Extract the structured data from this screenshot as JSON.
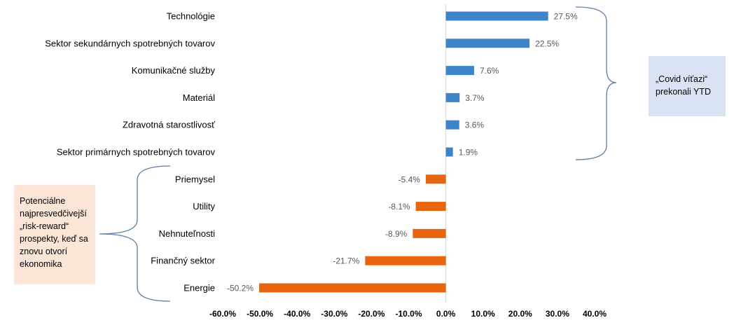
{
  "chart_data": {
    "type": "bar",
    "orientation": "horizontal",
    "categories": [
      "Technológie",
      "Sektor sekundárnych spotrebných tovarov",
      "Komunikačné služby",
      "Materiál",
      "Zdravotná starostlivosť",
      "Sektor primárnych spotrebných tovarov",
      "Priemysel",
      "Utility",
      "Nehnuteľnosti",
      "Finančný sektor",
      "Energie"
    ],
    "values": [
      27.5,
      22.5,
      7.6,
      3.7,
      3.6,
      1.9,
      -5.4,
      -8.1,
      -8.9,
      -21.7,
      -50.2
    ],
    "value_labels": [
      "27.5%",
      "22.5%",
      "7.6%",
      "3.7%",
      "3.6%",
      "1.9%",
      "-5.4%",
      "-8.1%",
      "-8.9%",
      "-21.7%",
      "-50.2%"
    ],
    "xlim": [
      -60,
      40
    ],
    "xticks": [
      -60,
      -50,
      -40,
      -30,
      -20,
      -10,
      0,
      10,
      20,
      30,
      40
    ],
    "xtick_labels": [
      "-60.0%",
      "-50.0%",
      "-40.0%",
      "-30.0%",
      "-20.0%",
      "-10.0%",
      "0.0%",
      "10.0%",
      "20.0%",
      "30.0%",
      "40.0%"
    ],
    "title": "",
    "xlabel": "",
    "ylabel": "",
    "grid": false,
    "colors": {
      "positive": "#3d85c8",
      "negative": "#e8650f",
      "axis": "#d9d9d9",
      "brace": "#5b7ea5"
    }
  },
  "annotations": {
    "covid": {
      "lines": [
        "„Covid víťazi“",
        "prekonali YTD"
      ],
      "color": "#dae3f3",
      "applies_to": [
        0,
        5
      ]
    },
    "risk": {
      "lines": [
        "Potenciálne",
        "najpresvedčivejší",
        "„risk-reward“",
        "prospekty, keď sa",
        "znovu otvorí",
        "ekonomika"
      ],
      "color": "#fbe5d6",
      "applies_to": [
        6,
        10
      ]
    }
  }
}
